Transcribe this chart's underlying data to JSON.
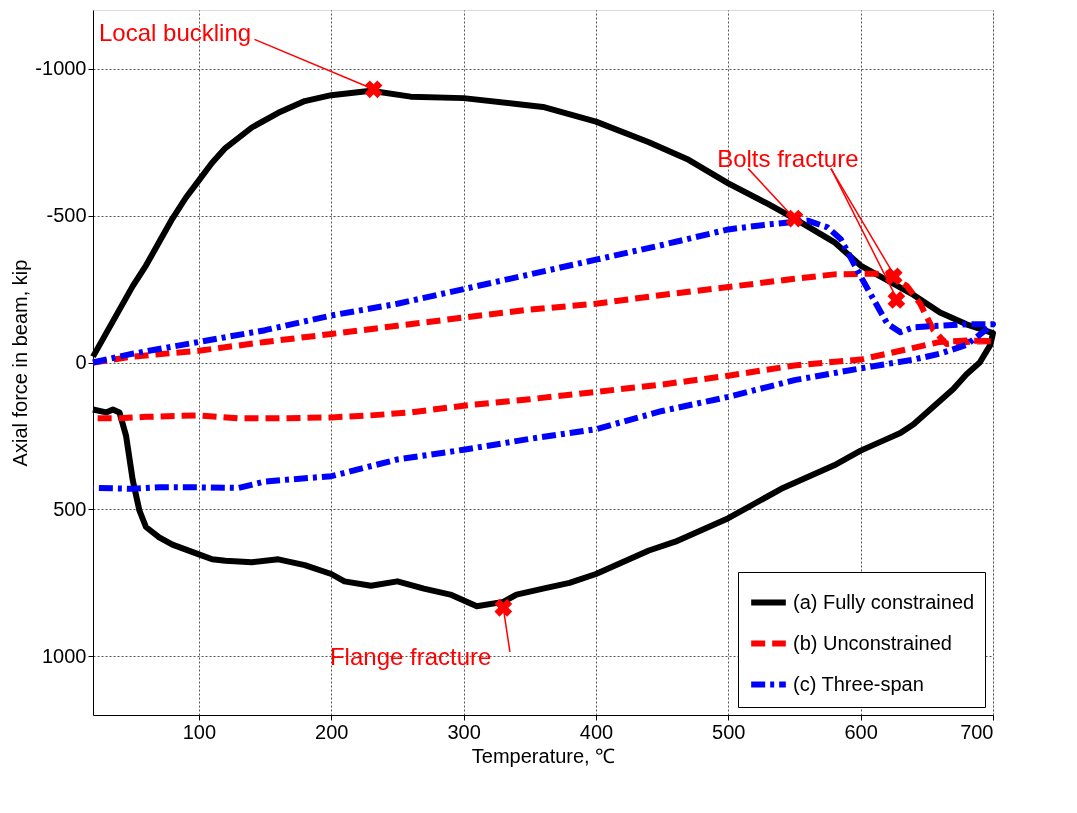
{
  "chart_data": {
    "type": "line",
    "xlabel": "Temperature, ℃",
    "ylabel": "Axial force in beam, kip",
    "xlim": [
      20,
      700
    ],
    "xticks": [
      100,
      200,
      300,
      400,
      500,
      600,
      700
    ],
    "ylim": [
      1200,
      -1200
    ],
    "yticks": [
      -1000,
      -500,
      0,
      500,
      1000
    ],
    "grid": true,
    "legend": "bottom right",
    "series": [
      {
        "name": "(a) Fully constrained",
        "color": "#000000",
        "line_style": "solid",
        "marker": "none",
        "x": [
          20,
          30,
          40,
          50,
          60,
          70,
          80,
          90,
          100,
          110,
          120,
          140,
          160,
          180,
          200,
          230,
          260,
          300,
          340,
          360,
          400,
          440,
          470,
          500,
          530,
          550,
          580,
          600,
          620,
          640,
          660,
          680,
          700,
          698,
          690,
          680,
          670,
          660,
          650,
          640,
          630,
          620,
          600,
          580,
          560,
          540,
          520,
          500,
          480,
          460,
          440,
          420,
          400,
          380,
          360,
          340,
          330,
          310,
          290,
          270,
          250,
          230,
          210,
          200,
          180,
          160,
          140,
          120,
          110,
          100,
          80,
          70,
          60,
          55,
          50,
          45,
          40,
          35,
          30,
          20
        ],
        "values": [
          -20,
          -100,
          -180,
          -260,
          -330,
          -410,
          -490,
          -560,
          -620,
          -680,
          -730,
          -800,
          -850,
          -890,
          -910,
          -925,
          -905,
          -900,
          -880,
          -870,
          -820,
          -750,
          -690,
          -610,
          -540,
          -490,
          -410,
          -330,
          -280,
          -230,
          -170,
          -130,
          -100,
          -60,
          0,
          40,
          90,
          130,
          170,
          210,
          240,
          260,
          300,
          350,
          390,
          430,
          480,
          530,
          570,
          610,
          640,
          680,
          720,
          750,
          770,
          790,
          815,
          830,
          790,
          770,
          745,
          760,
          745,
          720,
          690,
          670,
          680,
          675,
          670,
          653,
          620,
          595,
          560,
          503,
          400,
          250,
          170,
          160,
          170,
          160
        ]
      },
      {
        "name": "(b) Unconstrained",
        "color": "#ff0000",
        "line_style": "dashed",
        "marker": "none",
        "x": [
          20,
          50,
          100,
          150,
          200,
          250,
          300,
          350,
          400,
          450,
          500,
          550,
          580,
          620,
          635,
          645,
          655,
          665,
          680,
          700,
          680,
          660,
          640,
          600,
          550,
          500,
          450,
          400,
          350,
          300,
          260,
          230,
          200,
          160,
          130,
          100,
          60,
          40,
          20
        ],
        "values": [
          0,
          -20,
          -40,
          -70,
          -97,
          -125,
          -153,
          -180,
          -200,
          -230,
          -257,
          -285,
          -300,
          -303,
          -260,
          -200,
          -110,
          -63,
          -70,
          -73,
          -75,
          -70,
          -50,
          -10,
          10,
          45,
          75,
          100,
          125,
          147,
          170,
          180,
          187,
          190,
          190,
          180,
          185,
          190,
          190
        ]
      },
      {
        "name": "(c) Three-span",
        "color": "#0000ff",
        "line_style": "dashdot",
        "marker": "none",
        "x": [
          20,
          50,
          100,
          150,
          200,
          250,
          300,
          350,
          400,
          450,
          500,
          530,
          560,
          575,
          585,
          600,
          610,
          620,
          630,
          640,
          660,
          680,
          700,
          680,
          660,
          640,
          600,
          550,
          500,
          450,
          400,
          350,
          300,
          250,
          200,
          150,
          130,
          100,
          70,
          50,
          20
        ],
        "values": [
          0,
          -30,
          -70,
          -110,
          -160,
          -200,
          -250,
          -300,
          -350,
          -400,
          -453,
          -470,
          -483,
          -460,
          -420,
          -293,
          -213,
          -133,
          -103,
          -120,
          -125,
          -130,
          -130,
          -60,
          -30,
          -10,
          20,
          60,
          117,
          165,
          227,
          260,
          297,
          330,
          387,
          405,
          427,
          425,
          425,
          430,
          427
        ]
      },
      {
        "type": "scatter",
        "color": "#ff0000",
        "marker": "cross",
        "x": [
          232,
          330,
          550,
          625,
          627
        ],
        "values": [
          -930,
          835,
          -490,
          -293,
          -213
        ]
      }
    ],
    "annotations": [
      {
        "text": "Local buckling",
        "x": 232,
        "y": -930
      },
      {
        "text": "Flange fracture",
        "x": 330,
        "y": 835
      },
      {
        "text": "Bolts fracture",
        "x": 550,
        "y": -490
      }
    ]
  }
}
